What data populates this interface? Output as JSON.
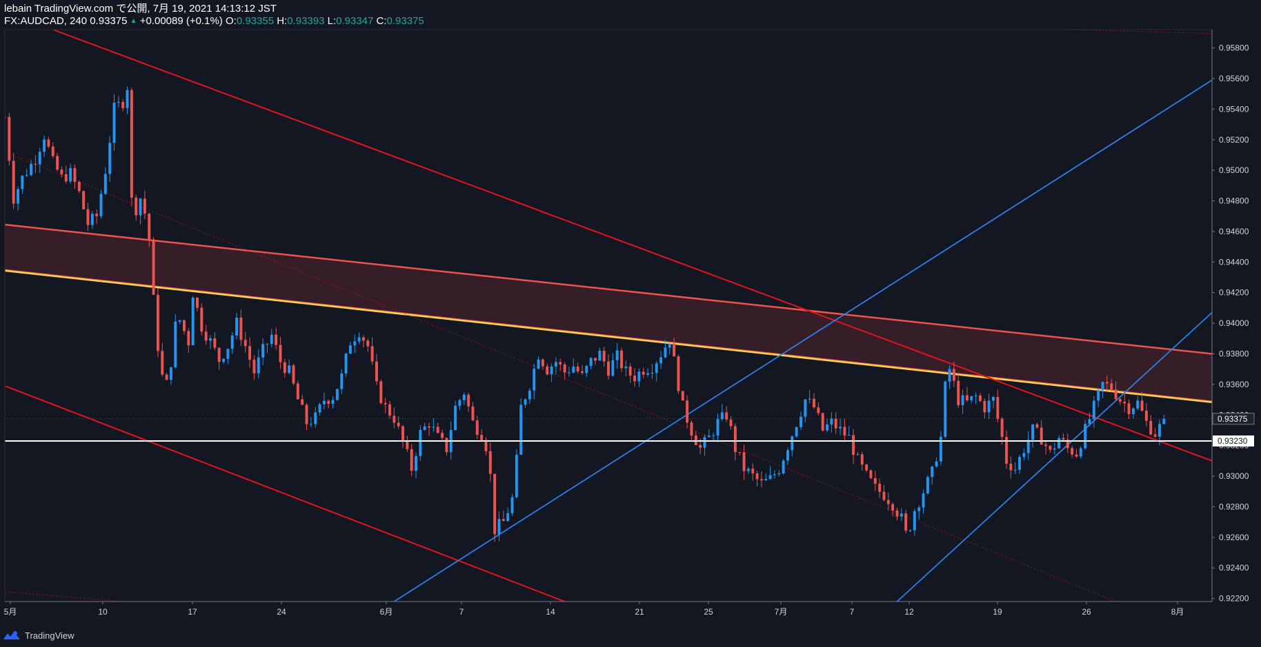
{
  "header": {
    "publisher": "lebain TradingView.com で公開, 7月 19, 2021 14:13:12 JST",
    "symbol": "FX:AUDCAD, 240",
    "last": "0.93375",
    "change_arrow": "▲",
    "change": "+0.00089 (+0.1%)",
    "o_label": "O:",
    "o": "0.93355",
    "h_label": "H:",
    "h": "0.93393",
    "l_label": "L:",
    "l": "0.93347",
    "c_label": "C:",
    "c": "0.93375"
  },
  "footer": {
    "brand": "TradingView",
    "logo_icon": "tradingview-logo-icon"
  },
  "colors": {
    "background": "#131722",
    "up": "#2196f3",
    "down": "#ef5350",
    "price_teal": "#26a69a",
    "red_line": "#e3141b",
    "blue_line": "#2d7ee8",
    "yellow_line": "#ffd54f",
    "zone_fill": "#3a1f28",
    "zone_border": "#ef5350",
    "horizontal_line": "#ffffff"
  },
  "chart_data": {
    "type": "candlestick",
    "symbol": "FX:AUDCAD",
    "interval": "240",
    "y_axis": {
      "ticks": [
        "0.95800",
        "0.95600",
        "0.95400",
        "0.95200",
        "0.95000",
        "0.94800",
        "0.94600",
        "0.94400",
        "0.94200",
        "0.94000",
        "0.93800",
        "0.93600",
        "0.93400",
        "0.93200",
        "0.93000",
        "0.92800",
        "0.92600",
        "0.92400",
        "0.92200"
      ],
      "ylim": [
        0.9218,
        0.9592
      ]
    },
    "x_axis": {
      "tick_labels": [
        "5月",
        "10",
        "17",
        "24",
        "6月",
        "7",
        "14",
        "21",
        "25",
        "7月",
        "7",
        "12",
        "19",
        "26",
        "8月"
      ]
    },
    "price_labels": [
      {
        "value": 0.93375,
        "text": "0.93375",
        "style": "last"
      },
      {
        "value": 0.9323,
        "text": "0.93230",
        "style": "line"
      }
    ],
    "horizontal_line": 0.9323,
    "close_path": [
      [
        0,
        0.9535
      ],
      [
        2,
        0.9482
      ],
      [
        4,
        0.9495
      ],
      [
        7,
        0.9508
      ],
      [
        9,
        0.9523
      ],
      [
        11,
        0.9505
      ],
      [
        13,
        0.9495
      ],
      [
        15,
        0.9498
      ],
      [
        17,
        0.9485
      ],
      [
        19,
        0.9465
      ],
      [
        21,
        0.947
      ],
      [
        23,
        0.95
      ],
      [
        25,
        0.954
      ],
      [
        27,
        0.9545
      ],
      [
        28,
        0.9555
      ],
      [
        29,
        0.948
      ],
      [
        30,
        0.9475
      ],
      [
        31,
        0.9482
      ],
      [
        32,
        0.9472
      ],
      [
        33,
        0.9455
      ],
      [
        34,
        0.9415
      ],
      [
        35,
        0.9385
      ],
      [
        36,
        0.9365
      ],
      [
        37,
        0.936
      ],
      [
        38,
        0.9375
      ],
      [
        39,
        0.9398
      ],
      [
        40,
        0.9402
      ],
      [
        42,
        0.9388
      ],
      [
        43,
        0.942
      ],
      [
        45,
        0.9398
      ],
      [
        47,
        0.9388
      ],
      [
        49,
        0.9376
      ],
      [
        51,
        0.9385
      ],
      [
        53,
        0.94
      ],
      [
        55,
        0.9385
      ],
      [
        57,
        0.9368
      ],
      [
        59,
        0.9382
      ],
      [
        61,
        0.9392
      ],
      [
        63,
        0.9375
      ],
      [
        65,
        0.9368
      ],
      [
        67,
        0.935
      ],
      [
        69,
        0.9335
      ],
      [
        71,
        0.9338
      ],
      [
        73,
        0.935
      ],
      [
        75,
        0.9352
      ],
      [
        77,
        0.9365
      ],
      [
        79,
        0.9388
      ],
      [
        81,
        0.9395
      ],
      [
        83,
        0.9385
      ],
      [
        85,
        0.9358
      ],
      [
        87,
        0.9345
      ],
      [
        89,
        0.9338
      ],
      [
        91,
        0.9322
      ],
      [
        93,
        0.9305
      ],
      [
        95,
        0.9328
      ],
      [
        97,
        0.9335
      ],
      [
        99,
        0.9325
      ],
      [
        101,
        0.9318
      ],
      [
        103,
        0.9345
      ],
      [
        105,
        0.9355
      ],
      [
        107,
        0.9335
      ],
      [
        109,
        0.9328
      ],
      [
        110,
        0.932
      ],
      [
        111,
        0.93
      ],
      [
        112,
        0.9265
      ],
      [
        114,
        0.927
      ],
      [
        116,
        0.9285
      ],
      [
        117,
        0.931
      ],
      [
        118,
        0.9345
      ],
      [
        120,
        0.936
      ],
      [
        122,
        0.938
      ],
      [
        124,
        0.937
      ],
      [
        126,
        0.9375
      ],
      [
        128,
        0.9368
      ],
      [
        130,
        0.9372
      ],
      [
        132,
        0.9365
      ],
      [
        134,
        0.9375
      ],
      [
        136,
        0.938
      ],
      [
        138,
        0.937
      ],
      [
        140,
        0.9378
      ],
      [
        142,
        0.9368
      ],
      [
        144,
        0.9365
      ],
      [
        146,
        0.937
      ],
      [
        148,
        0.9372
      ],
      [
        150,
        0.938
      ],
      [
        152,
        0.939
      ],
      [
        153,
        0.9375
      ],
      [
        154,
        0.936
      ],
      [
        155,
        0.9345
      ],
      [
        157,
        0.933
      ],
      [
        159,
        0.9318
      ],
      [
        161,
        0.9325
      ],
      [
        163,
        0.9335
      ],
      [
        165,
        0.934
      ],
      [
        166,
        0.933
      ],
      [
        167,
        0.9318
      ],
      [
        169,
        0.9305
      ],
      [
        171,
        0.93
      ],
      [
        173,
        0.9295
      ],
      [
        175,
        0.9298
      ],
      [
        177,
        0.9305
      ],
      [
        179,
        0.932
      ],
      [
        181,
        0.9335
      ],
      [
        183,
        0.935
      ],
      [
        185,
        0.9345
      ],
      [
        187,
        0.933
      ],
      [
        189,
        0.9335
      ],
      [
        191,
        0.933
      ],
      [
        193,
        0.9325
      ],
      [
        195,
        0.931
      ],
      [
        197,
        0.93
      ],
      [
        199,
        0.9292
      ],
      [
        201,
        0.9288
      ],
      [
        203,
        0.9282
      ],
      [
        205,
        0.9272
      ],
      [
        206,
        0.9262
      ],
      [
        207,
        0.9268
      ],
      [
        208,
        0.9278
      ],
      [
        210,
        0.929
      ],
      [
        212,
        0.9302
      ],
      [
        214,
        0.9325
      ],
      [
        215,
        0.9358
      ],
      [
        216,
        0.937
      ],
      [
        217,
        0.936
      ],
      [
        218,
        0.935
      ],
      [
        220,
        0.9348
      ],
      [
        222,
        0.9352
      ],
      [
        224,
        0.9345
      ],
      [
        226,
        0.935
      ],
      [
        228,
        0.9325
      ],
      [
        229,
        0.931
      ],
      [
        231,
        0.9305
      ],
      [
        233,
        0.9318
      ],
      [
        235,
        0.933
      ],
      [
        237,
        0.9325
      ],
      [
        239,
        0.9315
      ],
      [
        241,
        0.9325
      ],
      [
        243,
        0.9318
      ],
      [
        245,
        0.9315
      ],
      [
        247,
        0.933
      ],
      [
        249,
        0.9345
      ],
      [
        251,
        0.936
      ],
      [
        253,
        0.9358
      ],
      [
        255,
        0.935
      ],
      [
        257,
        0.9345
      ],
      [
        259,
        0.9348
      ],
      [
        261,
        0.9335
      ],
      [
        263,
        0.9328
      ],
      [
        264,
        0.9332
      ],
      [
        265,
        0.9337
      ]
    ]
  },
  "drawings": {
    "red_lines": [
      [
        [
          11,
          0.9592
        ],
        [
          276,
          0.931
        ]
      ],
      [
        [
          0,
          0.9359
        ],
        [
          128,
          0.9218
        ]
      ]
    ],
    "red_dotted": [
      [
        [
          0,
          0.9512
        ],
        [
          254,
          0.9218
        ]
      ],
      [
        [
          236,
          0.95925
        ],
        [
          276,
          0.95895
        ]
      ],
      [
        [
          0,
          0.92245
        ],
        [
          27,
          0.9218
        ]
      ]
    ],
    "blue_lines": [
      [
        [
          89,
          0.9218
        ],
        [
          276,
          0.9559
        ]
      ],
      [
        [
          204,
          0.9218
        ],
        [
          276,
          0.9407
        ]
      ]
    ],
    "zone": {
      "top": [
        [
          0,
          0.94645
        ],
        [
          276,
          0.938
        ]
      ],
      "bottom": [
        [
          0,
          0.9435
        ],
        [
          276,
          0.9349
        ]
      ]
    }
  }
}
